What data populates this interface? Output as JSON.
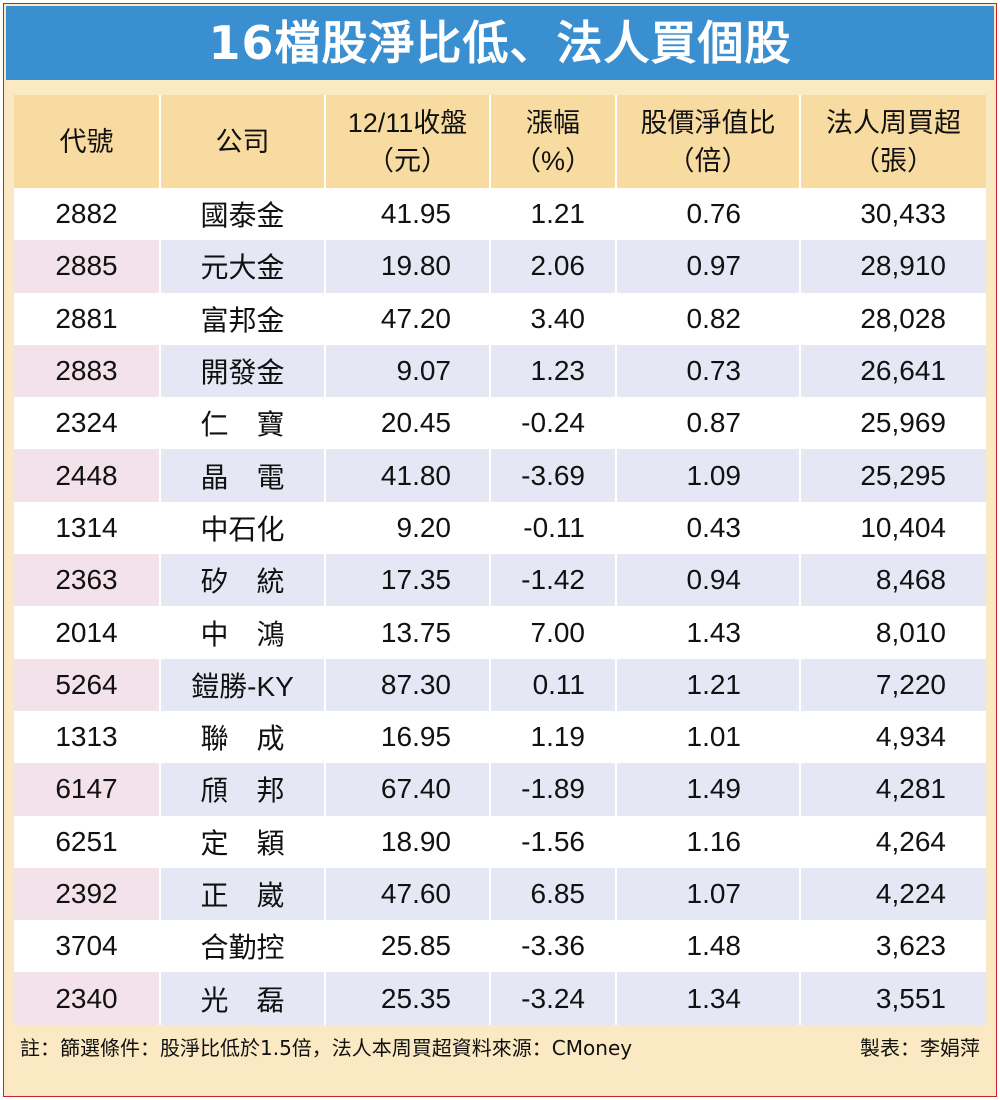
{
  "title": "16檔股淨比低、法人買個股",
  "headers": [
    {
      "line1": "代號",
      "line2": ""
    },
    {
      "line1": "公司",
      "line2": ""
    },
    {
      "line1": "12/11收盤",
      "line2": "（元）"
    },
    {
      "line1": "漲幅",
      "line2": "（%）"
    },
    {
      "line1": "股價淨值比",
      "line2": "（倍）"
    },
    {
      "line1": "法人周買超",
      "line2": "（張）"
    }
  ],
  "rows": [
    [
      "2882",
      "國泰金",
      "41.95",
      "1.21",
      "0.76",
      "30,433"
    ],
    [
      "2885",
      "元大金",
      "19.80",
      "2.06",
      "0.97",
      "28,910"
    ],
    [
      "2881",
      "富邦金",
      "47.20",
      "3.40",
      "0.82",
      "28,028"
    ],
    [
      "2883",
      "開發金",
      "9.07",
      "1.23",
      "0.73",
      "26,641"
    ],
    [
      "2324",
      "仁　寶",
      "20.45",
      "-0.24",
      "0.87",
      "25,969"
    ],
    [
      "2448",
      "晶　電",
      "41.80",
      "-3.69",
      "1.09",
      "25,295"
    ],
    [
      "1314",
      "中石化",
      "9.20",
      "-0.11",
      "0.43",
      "10,404"
    ],
    [
      "2363",
      "矽　統",
      "17.35",
      "-1.42",
      "0.94",
      "8,468"
    ],
    [
      "2014",
      "中　鴻",
      "13.75",
      "7.00",
      "1.43",
      "8,010"
    ],
    [
      "5264",
      "鎧勝-KY",
      "87.30",
      "0.11",
      "1.21",
      "7,220"
    ],
    [
      "1313",
      "聯　成",
      "16.95",
      "1.19",
      "1.01",
      "4,934"
    ],
    [
      "6147",
      "頎　邦",
      "67.40",
      "-1.89",
      "1.49",
      "4,281"
    ],
    [
      "6251",
      "定　穎",
      "18.90",
      "-1.56",
      "1.16",
      "4,264"
    ],
    [
      "2392",
      "正　崴",
      "47.60",
      "6.85",
      "1.07",
      "4,224"
    ],
    [
      "3704",
      "合勤控",
      "25.85",
      "-3.36",
      "1.48",
      "3,623"
    ],
    [
      "2340",
      "光　磊",
      "25.35",
      "-3.24",
      "1.34",
      "3,551"
    ]
  ],
  "note": "註：篩選條件：股淨比低於1.5倍，法人本周買超資料來源：CMoney",
  "author": "製表：李娟萍",
  "colors": {
    "title_bg": "#3a8fd1",
    "frame_bg": "#fbe9c3",
    "header_bg": "#f7dba0",
    "border": "#c8232c"
  }
}
